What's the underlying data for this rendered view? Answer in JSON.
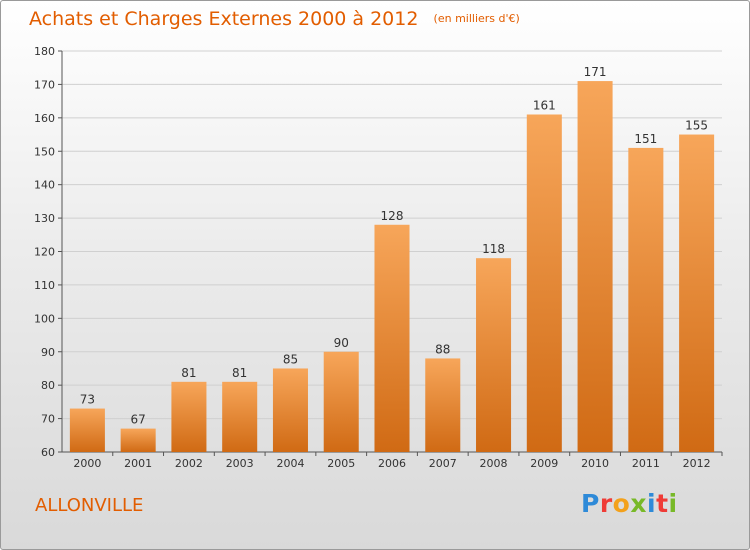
{
  "title": "Achats et Charges Externes 2000 à 2012",
  "unit": "(en milliers d'€)",
  "commune": "ALLONVILLE",
  "brand": {
    "name": "Proxiti",
    "colors": [
      "#2e8ad8",
      "#ef3b36",
      "#f3a11b",
      "#78b928",
      "#2e8ad8",
      "#ef3b36",
      "#78b928"
    ]
  },
  "colors": {
    "accent": "#e25d00",
    "bar_top": "#f7a65a",
    "bar_bottom": "#d06a14",
    "grid": "#d0d0d0"
  },
  "chart_data": {
    "type": "bar",
    "title": "Achats et Charges Externes 2000 à 2012",
    "subtitle": "(en milliers d'€)",
    "categories": [
      "2000",
      "2001",
      "2002",
      "2003",
      "2004",
      "2005",
      "2006",
      "2007",
      "2008",
      "2009",
      "2010",
      "2011",
      "2012"
    ],
    "values": [
      73,
      67,
      81,
      81,
      85,
      90,
      128,
      88,
      118,
      161,
      171,
      151,
      155
    ],
    "yticks": [
      60,
      70,
      80,
      90,
      100,
      110,
      120,
      130,
      140,
      150,
      160,
      170,
      180
    ],
    "ylim": [
      60,
      180
    ],
    "grid": true,
    "xlabel": "",
    "ylabel": ""
  }
}
